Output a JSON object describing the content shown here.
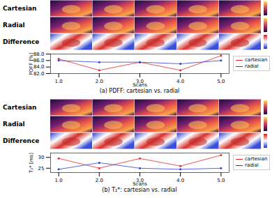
{
  "chart_data": [
    {
      "type": "line",
      "title": "(a) PDFF: cartesian vs. radial",
      "annotations": [
        "Cartesian",
        "Radial",
        "Difference"
      ],
      "x_label": "Scans",
      "y_label": "PDFF [%]",
      "x": [
        1,
        2,
        3,
        4,
        5
      ],
      "xlim": [
        0.8,
        5.2
      ],
      "xticks": [
        1,
        2,
        3,
        4,
        5
      ],
      "ylim": [
        82,
        88
      ],
      "yticks": [
        82,
        84,
        86,
        88
      ],
      "grid": false,
      "legend": "right",
      "series": [
        {
          "name": "cartesian",
          "color": "#e8262a",
          "marker": "o",
          "values": [
            86.5,
            83.0,
            85.5,
            83.0,
            87.5
          ]
        },
        {
          "name": "radial",
          "color": "#2a3fd8",
          "marker": "o",
          "values": [
            86.0,
            85.5,
            85.5,
            85.0,
            86.0
          ]
        }
      ]
    },
    {
      "type": "line",
      "title": "(b) T₂*: cartesian vs. radial",
      "annotations": [
        "Cartesian",
        "Radial",
        "Difference"
      ],
      "x_label": "Scans",
      "y_label": "T₂* [ms]",
      "x": [
        1,
        2,
        3,
        4,
        5
      ],
      "xlim": [
        0.8,
        5.2
      ],
      "xticks": [
        1,
        2,
        3,
        4,
        5
      ],
      "ylim": [
        23,
        32
      ],
      "yticks": [
        25,
        30
      ],
      "grid": false,
      "legend": "right",
      "series": [
        {
          "name": "cartesian",
          "color": "#e8262a",
          "marker": "o",
          "values": [
            29.5,
            25.0,
            29.5,
            26.0,
            31.0
          ]
        },
        {
          "name": "radial",
          "color": "#2a3fd8",
          "marker": "o",
          "values": [
            24.5,
            27.5,
            25.0,
            24.5,
            25.0
          ]
        }
      ]
    }
  ]
}
